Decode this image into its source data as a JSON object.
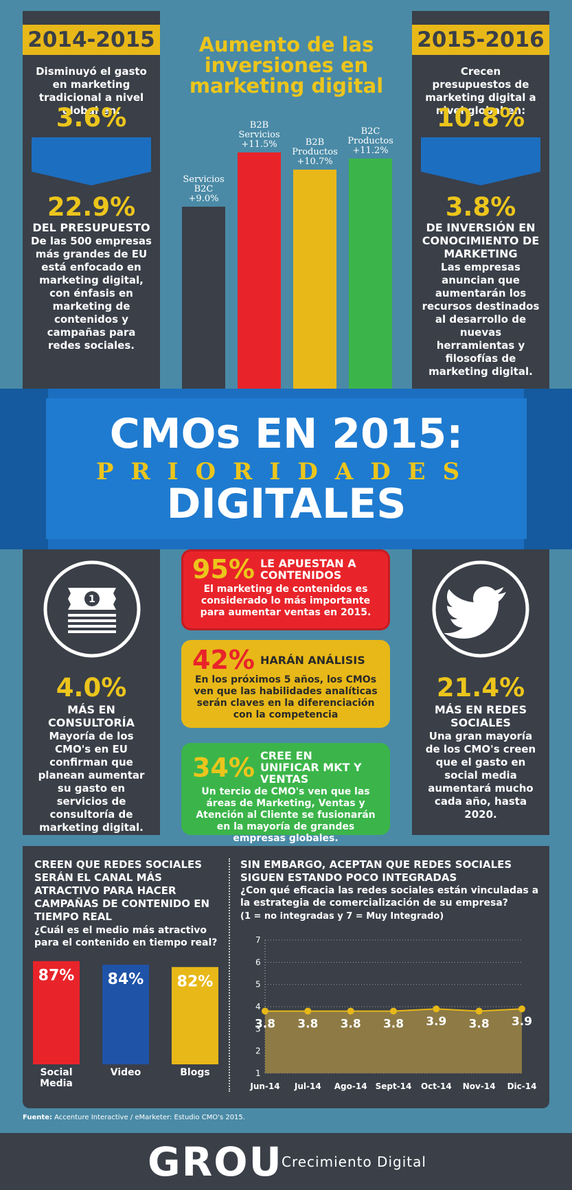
{
  "left_top": {
    "year": "2014-2015",
    "intro": "Disminuyó el gasto en marketing tradicional a nivel global en:",
    "value": "3.6%",
    "stat": "22.9%",
    "stat_head": "DEL PRESUPUESTO",
    "stat_text": "De las 500 empresas más grandes de EU está enfocado en marketing digital, con énfasis en marketing de contenidos y campañas para redes sociales."
  },
  "right_top": {
    "year": "2015-2016",
    "intro": "Crecen presupuestos de marketing digital a nivel global en:",
    "value": "10.8%",
    "stat": "3.8%",
    "stat_head": "DE INVERSIÓN EN CONOCIMIENTO DE MARKETING",
    "stat_text": "Las empresas anuncian que aumentarán los recursos destinados al desarrollo de nuevas herramientas y filosofías de marketing digital."
  },
  "center_chart": {
    "title": "Aumento de las inversiones en marketing digital",
    "bars": [
      {
        "label": "Servicios B2C",
        "value_text": "+9.0%",
        "value": 9.0,
        "color": "#3a3f48"
      },
      {
        "label": "B2B Servicios",
        "value_text": "+11.5%",
        "value": 11.5,
        "color": "#e8242a"
      },
      {
        "label": "B2B Productos",
        "value_text": "+10.7%",
        "value": 10.7,
        "color": "#e8b818"
      },
      {
        "label": "B2C Productos",
        "value_text": "+11.2%",
        "value": 11.2,
        "color": "#3bb54a"
      }
    ]
  },
  "banner": {
    "line1": "CMOs EN 2015:",
    "line2": "PRIORIDADES",
    "line3": "DIGITALES"
  },
  "left_mid": {
    "icon": "money-icon",
    "stat": "4.0%",
    "stat_head": "MÁS EN CONSULTORÍA",
    "stat_text": "Mayoría de los CMO's en EU confirman que planean aumentar su gasto en servicios de consultoría de marketing digital."
  },
  "right_mid": {
    "icon": "twitter-bird-icon",
    "stat": "21.4%",
    "stat_head": "MÁS EN REDES SOCIALES",
    "stat_text": "Una gran mayoría de los CMO's creen que el gasto en social media aumentará mucho cada año, hasta 2020."
  },
  "cards": [
    {
      "pct": "95%",
      "head": "LE APUESTAN A CONTENIDOS",
      "text": "El marketing de contenidos es considerado lo más importante para aumentar ventas en 2015.",
      "bg": "#e8242a",
      "pct_color": "#ecc51c"
    },
    {
      "pct": "42%",
      "head": "HARÁN ANÁLISIS",
      "text": "En los próximos 5 años, los CMOs ven que las habilidades analíticas serán claves en la diferenciación con la competencia",
      "bg": "#e8b818",
      "pct_color": "#e8242a"
    },
    {
      "pct": "34%",
      "head": "CREE EN UNIFICAR MKT Y VENTAS",
      "text": "Un tercio de CMO's ven que las áreas de Marketing, Ventas y Atención al Cliente se fusionarán en la mayoría de grandes empresas globales.",
      "bg": "#3bb54a",
      "pct_color": "#ecc51c"
    }
  ],
  "bottom_left": {
    "heading": "CREEN QUE REDES SOCIALES SERÁN EL CANAL MÁS ATRACTIVO PARA HACER CAMPAÑAS DE CONTENIDO EN TIEMPO REAL",
    "question": "¿Cuál es el medio más atractivo para el contenido en tiempo real?"
  },
  "bottom_right": {
    "heading": "SIN EMBARGO, ACEPTAN QUE REDES SOCIALES SIGUEN ESTANDO POCO INTEGRADAS",
    "question": "¿Con qué eficacia las redes sociales están vinculadas a la estrategia de comercialización de su empresa?",
    "scale_note": "(1 = no integradas y 7 = Muy Integrado)"
  },
  "chart_data": [
    {
      "type": "bar",
      "categories": [
        "Social Media",
        "Video",
        "Blogs"
      ],
      "values": [
        87,
        84,
        82
      ],
      "value_labels": [
        "87%",
        "84%",
        "82%"
      ],
      "colors": [
        "#e8242a",
        "#1f53a8",
        "#e8b818"
      ]
    },
    {
      "type": "area",
      "x": [
        "Jun-14",
        "Jul-14",
        "Ago-14",
        "Sept-14",
        "Oct-14",
        "Nov-14",
        "Dic-14"
      ],
      "values": [
        3.8,
        3.8,
        3.8,
        3.8,
        3.9,
        3.8,
        3.9
      ],
      "value_labels": [
        "3.8",
        "3.8",
        "3.8",
        "3.8",
        "3.9",
        "3.8",
        "3.9"
      ],
      "yticks": [
        "1",
        "2",
        "3",
        "4",
        "5",
        "6",
        "7"
      ],
      "ylim": [
        1,
        7
      ],
      "grid": true,
      "fill_color": "#8d7a45",
      "line_color": "#e8b818"
    }
  ],
  "footer": {
    "source_label": "Fuente:",
    "source_text": "Accenture Interactive / eMarketer: Estudio CMO's 2015.",
    "brand": "GROU",
    "tagline": "Crecimiento Digital"
  }
}
